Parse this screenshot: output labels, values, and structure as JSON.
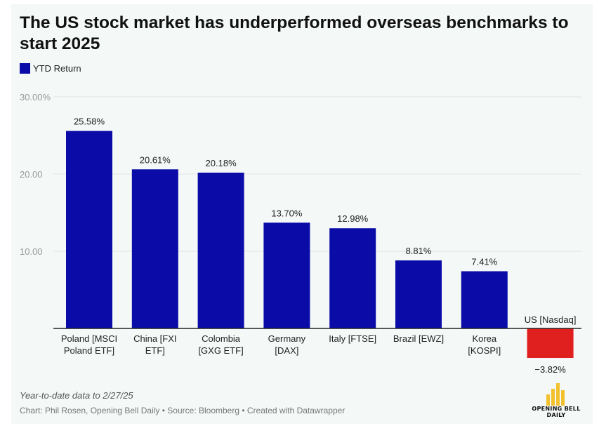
{
  "title": "The US stock market has underperformed overseas benchmarks to start 2025",
  "legend": {
    "label": "YTD Return",
    "color": "#0b0ca8"
  },
  "note": "Year-to-date data to 2/27/25",
  "credit": "Chart: Phil Rosen, Opening Bell Daily • Source: Bloomberg • Created with Datawrapper",
  "logo": {
    "text_line1": "OPENING BELL",
    "text_line2": "DAILY",
    "icon": "bar-chart-logo-icon"
  },
  "colors": {
    "positive": "#0b0ca8",
    "negative": "#e0201f",
    "grid": "#dfe3e3",
    "axis": "#222222"
  },
  "chart_data": {
    "type": "bar",
    "categories": [
      [
        "Poland [MSCI",
        "Poland ETF]"
      ],
      [
        "China [FXI",
        "ETF]"
      ],
      [
        "Colombia",
        "[GXG ETF]"
      ],
      [
        "Germany",
        "[DAX]"
      ],
      [
        "Italy [FTSE]"
      ],
      [
        "Brazil [EWZ]"
      ],
      [
        "Korea",
        "[KOSPI]"
      ],
      [
        "US [Nasdaq]"
      ]
    ],
    "series": [
      {
        "name": "YTD Return",
        "values": [
          25.58,
          20.61,
          20.18,
          13.7,
          12.98,
          8.81,
          7.41,
          -3.82
        ]
      }
    ],
    "value_labels": [
      "25.58%",
      "20.61%",
      "20.18%",
      "13.70%",
      "12.98%",
      "8.81%",
      "7.41%",
      "−3.82%"
    ],
    "yticks": [
      {
        "value": 30,
        "label": "30.00%"
      },
      {
        "value": 20,
        "label": "20.00"
      },
      {
        "value": 10,
        "label": "10.00"
      }
    ],
    "ylim": [
      -3.82,
      30
    ],
    "grid": true,
    "legend_position": "top-left"
  }
}
